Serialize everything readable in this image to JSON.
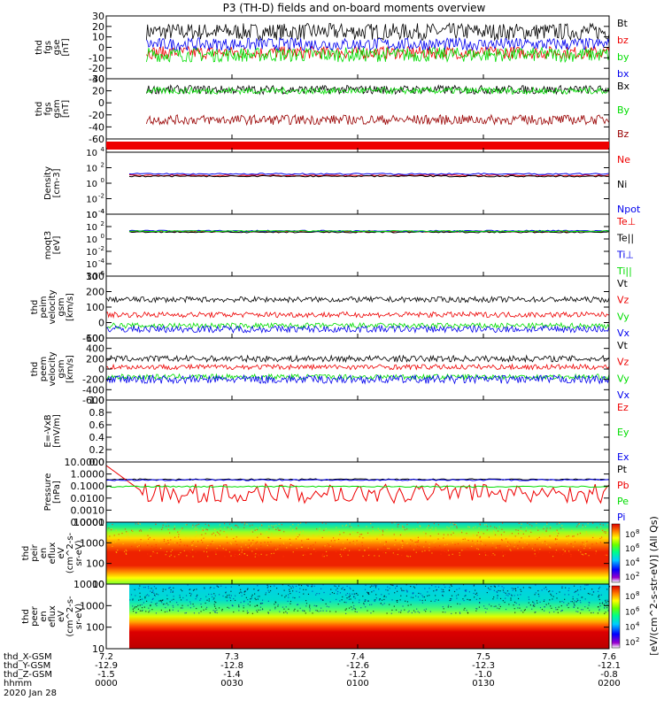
{
  "title": "P3 (TH-D) fields and on-board moments overview",
  "footer": {
    "rows": [
      {
        "label": "thd_X-GSM",
        "ticks": [
          "7.2",
          "7.3",
          "7.4",
          "7.5",
          "7.6"
        ]
      },
      {
        "label": "thd_Y-GSM",
        "ticks": [
          "-12.9",
          "-12.8",
          "-12.6",
          "-12.3",
          "-12.1"
        ]
      },
      {
        "label": "thd_Z-GSM",
        "ticks": [
          "-1.5",
          "-1.4",
          "-1.2",
          "-1.0",
          "-0.8"
        ]
      },
      {
        "label": "hhmm",
        "ticks": [
          "0000",
          "0030",
          "0100",
          "0130",
          "0200"
        ]
      }
    ],
    "date": "2020 Jan 28"
  },
  "colorbar": {
    "label": "[eV/(cm^2-s-str-eV)] (All Qs)",
    "top_ticks": [
      "10^8",
      "10^6",
      "10^4",
      "10^2"
    ],
    "bottom_ticks": [
      "10^8",
      "10^6",
      "10^4",
      "10^2"
    ]
  },
  "colors": {
    "black": "#000000",
    "red": "#ee0000",
    "green": "#00dd00",
    "blue": "#0000ee",
    "darkred": "#990000"
  },
  "chart_data": [
    {
      "type": "line",
      "ylabel": [
        "thd",
        "fgs",
        "gse",
        "[nT]"
      ],
      "ylim": [
        -30,
        30
      ],
      "yticks": [
        "30",
        "20",
        "10",
        "0",
        "-10",
        "-20",
        "-30"
      ],
      "series": [
        {
          "name": "Bt",
          "color": "#000000",
          "mean": 15,
          "amp": 8,
          "start": 0.08
        },
        {
          "name": "bz",
          "color": "#ee0000",
          "mean": -5,
          "amp": 6,
          "start": 0.08
        },
        {
          "name": "by",
          "color": "#00dd00",
          "mean": -7,
          "amp": 7,
          "start": 0.08
        },
        {
          "name": "bx",
          "color": "#0000ee",
          "mean": 3,
          "amp": 6,
          "start": 0.08
        }
      ]
    },
    {
      "type": "line",
      "ylabel": [
        "thd",
        "fgs",
        "gsm",
        "[nT]"
      ],
      "ylim": [
        -70,
        40
      ],
      "yticks": [
        "40",
        "20",
        "0",
        "-20",
        "-40",
        "-60"
      ],
      "series": [
        {
          "name": "Bx",
          "color": "#000000",
          "mean": 20,
          "amp": 8,
          "start": 0.08
        },
        {
          "name": "By",
          "color": "#00dd00",
          "mean": 18,
          "amp": 6,
          "start": 0.08
        },
        {
          "name": "Bz",
          "color": "#990000",
          "mean": -35,
          "amp": 9,
          "start": 0.08
        }
      ]
    },
    {
      "type": "line",
      "ylabel": [
        "Density",
        "[cm-3]"
      ],
      "ylim_log": [
        -4,
        4
      ],
      "yticks": [
        "10^4",
        "10^2",
        "10^0",
        "10^-2",
        "10^-4"
      ],
      "series": [
        {
          "name": "Ne",
          "color": "#ee0000",
          "logval": 1.0
        },
        {
          "name": "Ni",
          "color": "#000000",
          "logval": 0.9
        },
        {
          "name": "Npot",
          "color": "#0000ee",
          "logval": 1.2
        }
      ]
    },
    {
      "type": "line",
      "ylabel": [
        "moqt3",
        "[eV]"
      ],
      "ylim_log": [
        -6,
        4
      ],
      "yticks": [
        "10^4",
        "10^2",
        "10^0",
        "10^-2",
        "10^-4",
        "10^-6"
      ],
      "series": [
        {
          "name": "Te⊥",
          "color": "#ee0000",
          "logval": 1.2
        },
        {
          "name": "Te||",
          "color": "#000000",
          "logval": 1.1
        },
        {
          "name": "Ti⊥",
          "color": "#0000ee",
          "logval": 1.3
        },
        {
          "name": "Ti||",
          "color": "#00dd00",
          "logval": 1.25
        }
      ]
    },
    {
      "type": "line",
      "ylabel": [
        "thd",
        "peim",
        "velocity",
        "gsm",
        "[km/s]"
      ],
      "ylim": [
        -150,
        300
      ],
      "yticks": [
        "300",
        "200",
        "100",
        "0",
        "-100"
      ],
      "series": [
        {
          "name": "Vt",
          "color": "#000000",
          "mean": 130,
          "amp": 20
        },
        {
          "name": "Vz",
          "color": "#ee0000",
          "mean": 20,
          "amp": 20
        },
        {
          "name": "Vy",
          "color": "#00dd00",
          "mean": -60,
          "amp": 20
        },
        {
          "name": "Vx",
          "color": "#0000ee",
          "mean": -85,
          "amp": 25
        }
      ]
    },
    {
      "type": "line",
      "ylabel": [
        "thd",
        "peem",
        "velocity",
        "gsm",
        "[km/s]"
      ],
      "ylim": [
        -600,
        600
      ],
      "yticks": [
        "600",
        "400",
        "200",
        "0",
        "-200",
        "-400",
        "-600"
      ],
      "series": [
        {
          "name": "Vt",
          "color": "#000000",
          "mean": 200,
          "amp": 60
        },
        {
          "name": "Vz",
          "color": "#ee0000",
          "mean": 40,
          "amp": 50
        },
        {
          "name": "Vy",
          "color": "#00dd00",
          "mean": -150,
          "amp": 50
        },
        {
          "name": "Vx",
          "color": "#0000ee",
          "mean": -200,
          "amp": 80
        }
      ]
    },
    {
      "type": "line",
      "ylabel": [
        "E=-VxB",
        "[mV/m]"
      ],
      "ylim": [
        0,
        1
      ],
      "yticks": [
        "1.0",
        "0.8",
        "0.6",
        "0.4",
        "0.2",
        "0.0"
      ],
      "series": [
        {
          "name": "Ez",
          "color": "#ee0000"
        },
        {
          "name": "Ey",
          "color": "#00dd00"
        },
        {
          "name": "Ex",
          "color": "#0000ee"
        }
      ]
    },
    {
      "type": "line",
      "ylabel": [
        "Pressure",
        "[nPa]"
      ],
      "ylim_log": [
        -4,
        1
      ],
      "yticks": [
        "10.0000",
        "1.0000",
        "0.1000",
        "0.0100",
        "0.0010",
        "0.0001"
      ],
      "series": [
        {
          "name": "Pt",
          "color": "#000000",
          "logval": -0.45
        },
        {
          "name": "Pb",
          "color": "#ee0000",
          "logval": -1.6
        },
        {
          "name": "Pe",
          "color": "#00dd00",
          "logval": -1.05
        },
        {
          "name": "Pi",
          "color": "#0000ee",
          "logval": -0.5
        }
      ]
    },
    {
      "type": "heatmap",
      "ylabel": [
        "thd",
        "peir",
        "en",
        "eflux",
        "eV",
        "(cm^2-s-",
        "sr-eV)"
      ],
      "yticks": [
        "10000",
        "1000",
        "100",
        "10"
      ]
    },
    {
      "type": "heatmap",
      "ylabel": [
        "thd",
        "peer",
        "en",
        "eflux",
        "eV",
        "(cm^2-s-",
        "sr-eV)"
      ],
      "yticks": [
        "10000",
        "1000",
        "100",
        "10"
      ]
    }
  ]
}
